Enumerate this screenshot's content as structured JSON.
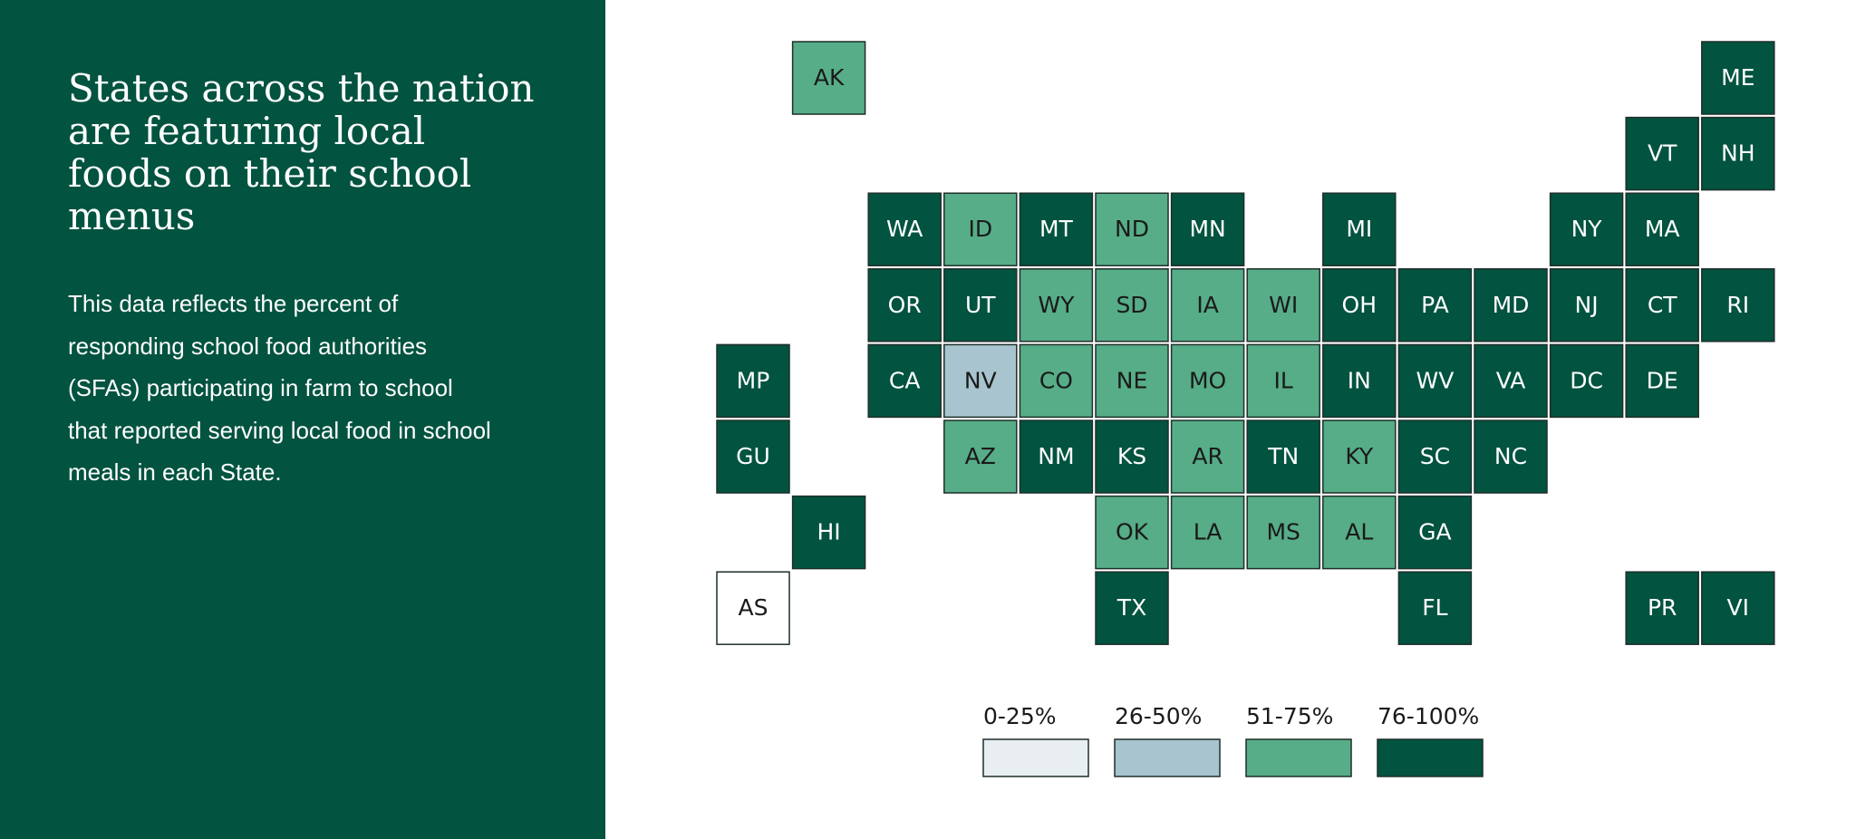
{
  "title": "States across the nation are featuring local foods on their school menus",
  "description": "This data reflects the percent of responding school food authorities (SFAs) participating in farm to school that reported serving local food in school meals in each State.",
  "tiles": [
    {
      "label": "AK",
      "color": "#56ad88"
    },
    {
      "label": "ME",
      "color": "#02533f"
    },
    {
      "label": "VT",
      "color": "#02533f"
    },
    {
      "label": "NH",
      "color": "#02533f"
    },
    {
      "label": "WA",
      "color": "#02533f"
    },
    {
      "label": "ID",
      "color": "#56ad88"
    },
    {
      "label": "MT",
      "color": "#02533f"
    },
    {
      "label": "ND",
      "color": "#56ad88"
    },
    {
      "label": "MN",
      "color": "#02533f"
    },
    {
      "label": "MI",
      "color": "#02533f"
    },
    {
      "label": "NY",
      "color": "#02533f"
    },
    {
      "label": "MA",
      "color": "#02533f"
    },
    {
      "label": "OR",
      "color": "#02533f"
    },
    {
      "label": "UT",
      "color": "#02533f"
    },
    {
      "label": "WY",
      "color": "#56ad88"
    },
    {
      "label": "SD",
      "color": "#56ad88"
    },
    {
      "label": "IA",
      "color": "#56ad88"
    },
    {
      "label": "WI",
      "color": "#56ad88"
    },
    {
      "label": "OH",
      "color": "#02533f"
    },
    {
      "label": "PA",
      "color": "#02533f"
    },
    {
      "label": "MD",
      "color": "#02533f"
    },
    {
      "label": "NJ",
      "color": "#02533f"
    },
    {
      "label": "CT",
      "color": "#02533f"
    },
    {
      "label": "RI",
      "color": "#02533f"
    },
    {
      "label": "MP",
      "color": "#02533f"
    },
    {
      "label": "CA",
      "color": "#02533f"
    },
    {
      "label": "NV",
      "color": "#a8c4cf"
    },
    {
      "label": "CO",
      "color": "#56ad88"
    },
    {
      "label": "NE",
      "color": "#56ad88"
    },
    {
      "label": "MO",
      "color": "#56ad88"
    },
    {
      "label": "IL",
      "color": "#56ad88"
    },
    {
      "label": "IN",
      "color": "#02533f"
    },
    {
      "label": "WV",
      "color": "#02533f"
    },
    {
      "label": "VA",
      "color": "#02533f"
    },
    {
      "label": "DC",
      "color": "#02533f"
    },
    {
      "label": "DE",
      "color": "#02533f"
    },
    {
      "label": "GU",
      "color": "#02533f"
    },
    {
      "label": "AZ",
      "color": "#56ad88"
    },
    {
      "label": "NM",
      "color": "#02533f"
    },
    {
      "label": "KS",
      "color": "#02533f"
    },
    {
      "label": "AR",
      "color": "#56ad88"
    },
    {
      "label": "TN",
      "color": "#02533f"
    },
    {
      "label": "KY",
      "color": "#56ad88"
    },
    {
      "label": "SC",
      "color": "#02533f"
    },
    {
      "label": "NC",
      "color": "#02533f"
    },
    {
      "label": "HI",
      "color": "#02533f"
    },
    {
      "label": "OK",
      "color": "#56ad88"
    },
    {
      "label": "LA",
      "color": "#56ad88"
    },
    {
      "label": "MS",
      "color": "#56ad88"
    },
    {
      "label": "AL",
      "color": "#56ad88"
    },
    {
      "label": "GA",
      "color": "#02533f"
    },
    {
      "label": "AS",
      "color": "#ffffff"
    },
    {
      "label": "TX",
      "color": "#02533f"
    },
    {
      "label": "FL",
      "color": "#02533f"
    },
    {
      "label": "PR",
      "color": "#02533f"
    },
    {
      "label": "VI",
      "color": "#02533f"
    }
  ],
  "legend": [
    {
      "label": "0-25%",
      "color": "#e8eef1"
    },
    {
      "label": "26-50%",
      "color": "#a8c4cf"
    },
    {
      "label": "51-75%",
      "color": "#56ad88"
    },
    {
      "label": "76-100%",
      "color": "#02533f"
    }
  ]
}
